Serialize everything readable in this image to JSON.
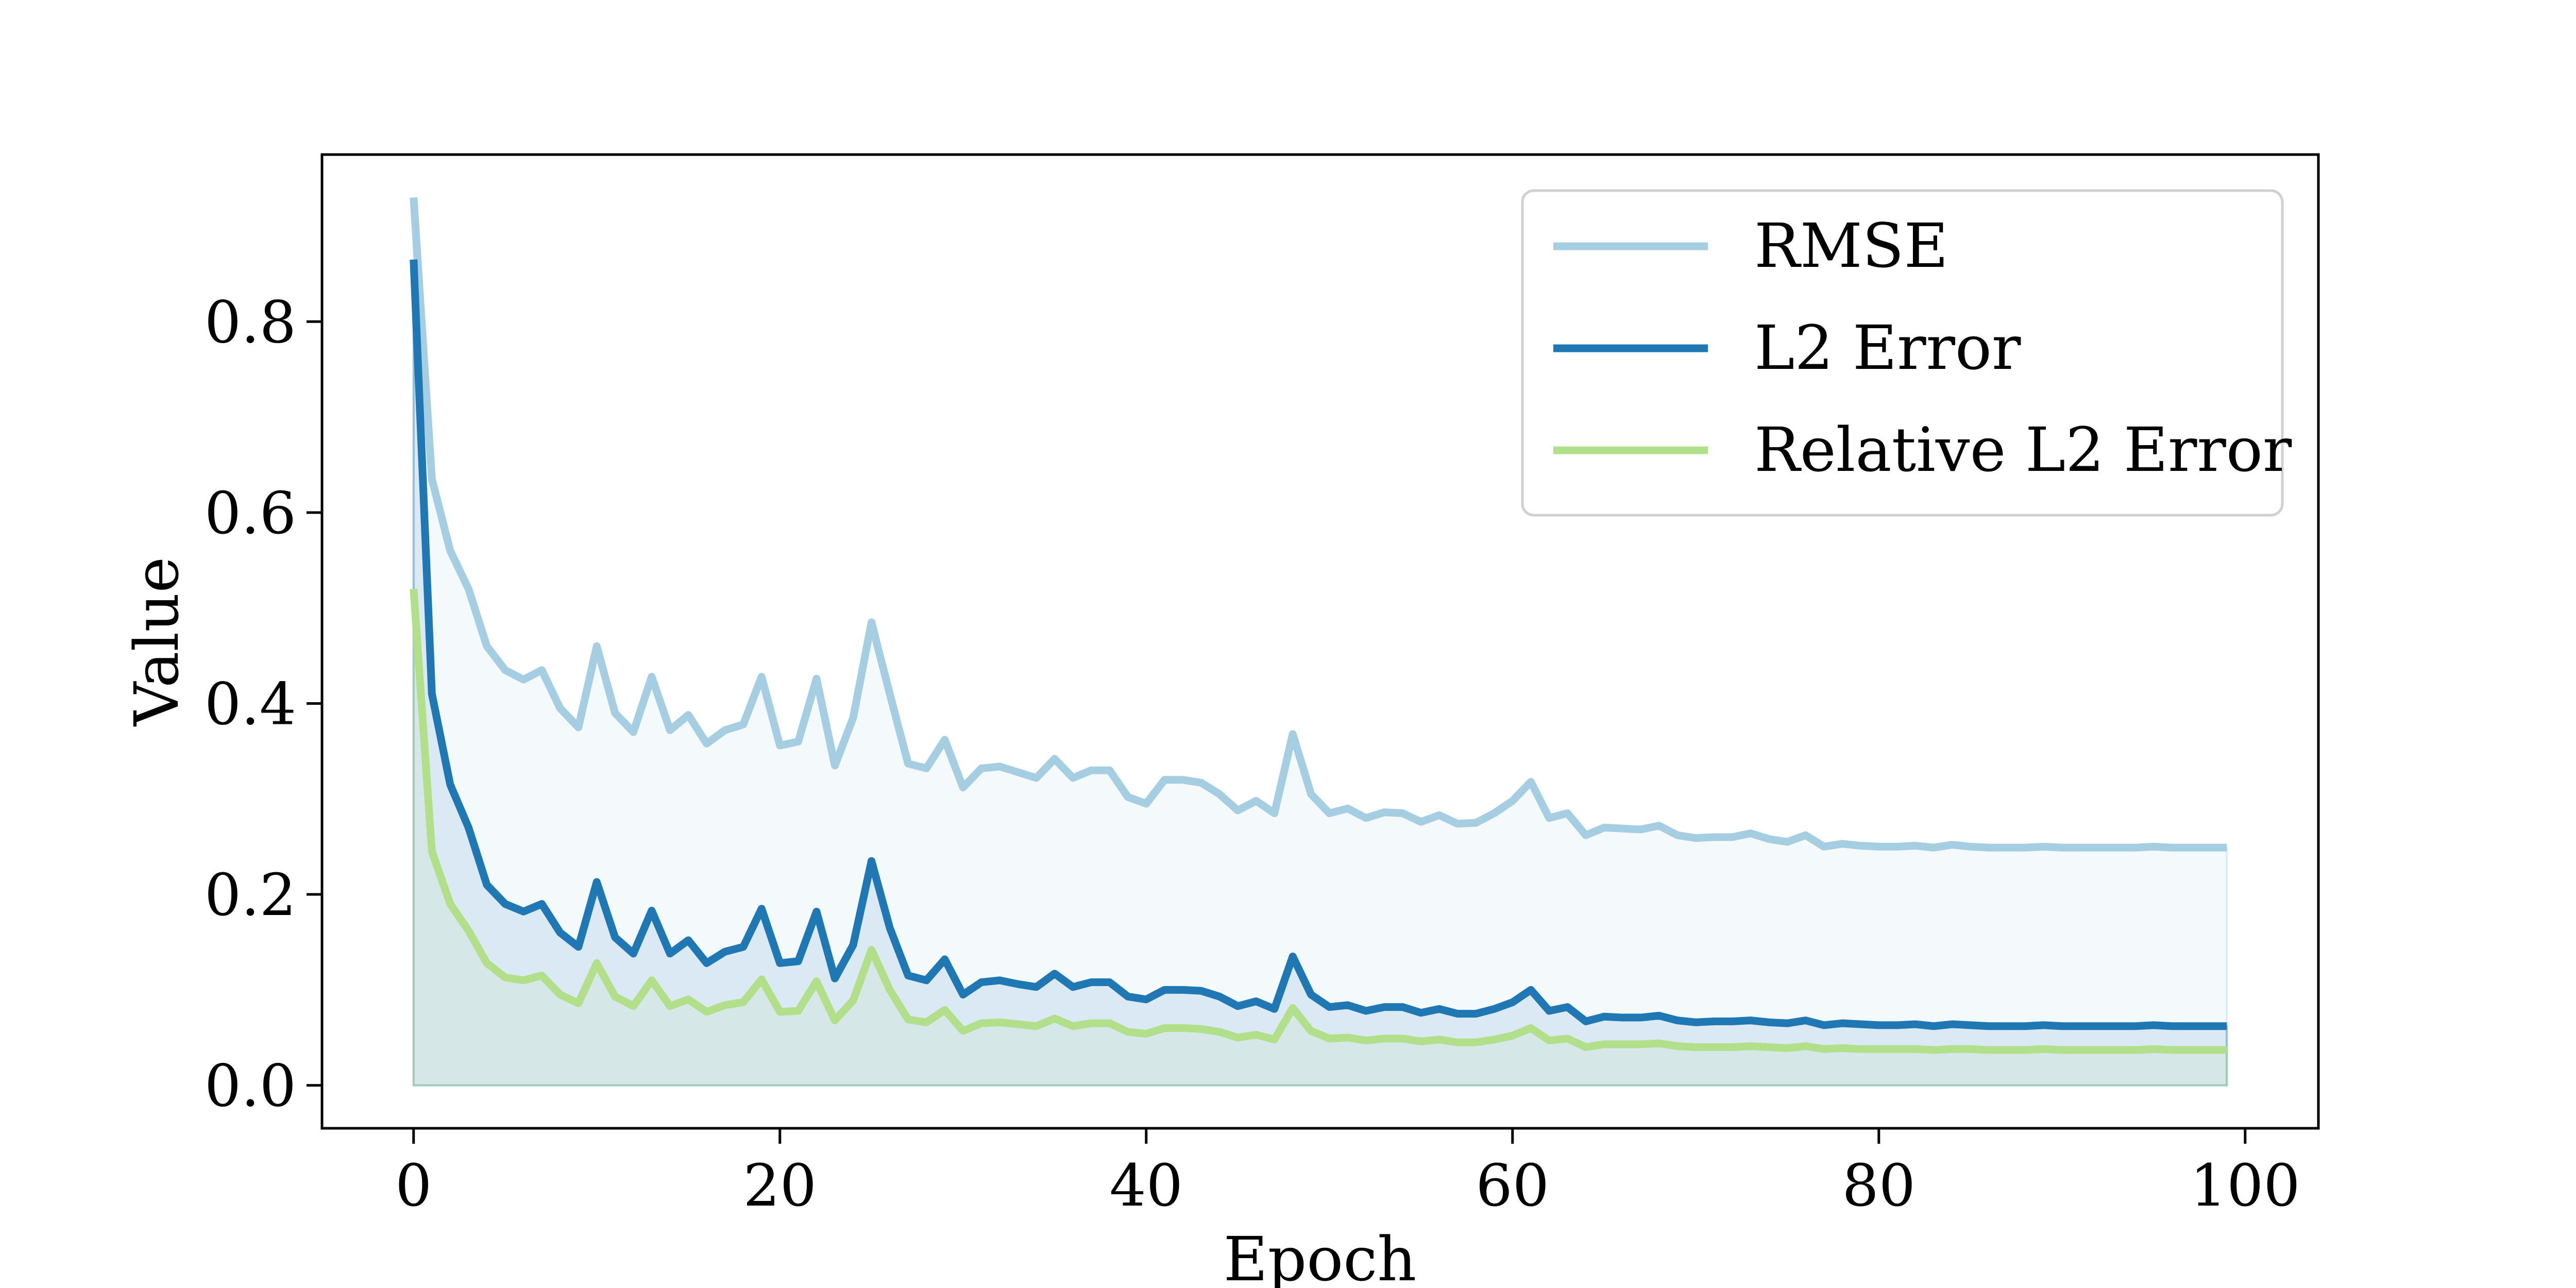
{
  "chart_data": {
    "type": "line",
    "xlabel": "Epoch",
    "ylabel": "Value",
    "xlim": [
      -5,
      104
    ],
    "ylim": [
      -0.045,
      0.975
    ],
    "xticks": [
      0,
      20,
      40,
      60,
      80,
      100
    ],
    "xtick_labels": [
      "0",
      "20",
      "40",
      "60",
      "80",
      "100"
    ],
    "yticks": [
      0.0,
      0.2,
      0.4,
      0.6,
      0.8
    ],
    "ytick_labels": [
      "0.0",
      "0.2",
      "0.4",
      "0.6",
      "0.8"
    ],
    "grid": false,
    "legend_position": "top-right",
    "x": [
      0,
      1,
      2,
      3,
      4,
      5,
      6,
      7,
      8,
      9,
      10,
      11,
      12,
      13,
      14,
      15,
      16,
      17,
      18,
      19,
      20,
      21,
      22,
      23,
      24,
      25,
      26,
      27,
      28,
      29,
      30,
      31,
      32,
      33,
      34,
      35,
      36,
      37,
      38,
      39,
      40,
      41,
      42,
      43,
      44,
      45,
      46,
      47,
      48,
      49,
      50,
      51,
      52,
      53,
      54,
      55,
      56,
      57,
      58,
      59,
      60,
      61,
      62,
      63,
      64,
      65,
      66,
      67,
      68,
      69,
      70,
      71,
      72,
      73,
      74,
      75,
      76,
      77,
      78,
      79,
      80,
      81,
      82,
      83,
      84,
      85,
      86,
      87,
      88,
      89,
      90,
      91,
      92,
      93,
      94,
      95,
      96,
      97,
      98,
      99
    ],
    "series": [
      {
        "name": "RMSE",
        "color": "#a6cee3",
        "fill": true,
        "values": [
          0.93,
          0.635,
          0.56,
          0.52,
          0.46,
          0.435,
          0.425,
          0.435,
          0.395,
          0.375,
          0.46,
          0.39,
          0.37,
          0.428,
          0.372,
          0.388,
          0.358,
          0.372,
          0.378,
          0.428,
          0.356,
          0.36,
          0.426,
          0.335,
          0.385,
          0.485,
          0.41,
          0.337,
          0.332,
          0.362,
          0.312,
          0.332,
          0.334,
          0.328,
          0.322,
          0.342,
          0.322,
          0.33,
          0.33,
          0.302,
          0.295,
          0.32,
          0.32,
          0.317,
          0.305,
          0.288,
          0.298,
          0.285,
          0.368,
          0.305,
          0.285,
          0.29,
          0.28,
          0.286,
          0.285,
          0.276,
          0.283,
          0.274,
          0.275,
          0.285,
          0.298,
          0.318,
          0.28,
          0.285,
          0.262,
          0.27,
          0.269,
          0.268,
          0.272,
          0.262,
          0.259,
          0.26,
          0.26,
          0.264,
          0.258,
          0.255,
          0.262,
          0.25,
          0.253,
          0.251,
          0.25,
          0.25,
          0.251,
          0.249,
          0.252,
          0.25,
          0.249,
          0.249,
          0.249,
          0.25,
          0.249,
          0.249,
          0.249,
          0.249,
          0.249,
          0.25,
          0.249,
          0.249,
          0.249,
          0.249
        ]
      },
      {
        "name": "L2 Error",
        "color": "#1f78b4",
        "fill": true,
        "values": [
          0.865,
          0.41,
          0.315,
          0.27,
          0.21,
          0.19,
          0.182,
          0.19,
          0.16,
          0.145,
          0.213,
          0.155,
          0.138,
          0.183,
          0.138,
          0.152,
          0.128,
          0.14,
          0.145,
          0.185,
          0.128,
          0.13,
          0.182,
          0.112,
          0.147,
          0.235,
          0.165,
          0.115,
          0.11,
          0.132,
          0.095,
          0.108,
          0.11,
          0.106,
          0.103,
          0.117,
          0.103,
          0.108,
          0.108,
          0.093,
          0.09,
          0.1,
          0.1,
          0.099,
          0.093,
          0.083,
          0.088,
          0.08,
          0.135,
          0.095,
          0.082,
          0.084,
          0.078,
          0.082,
          0.082,
          0.076,
          0.08,
          0.075,
          0.075,
          0.08,
          0.087,
          0.1,
          0.078,
          0.082,
          0.067,
          0.072,
          0.071,
          0.071,
          0.073,
          0.068,
          0.066,
          0.067,
          0.067,
          0.068,
          0.066,
          0.065,
          0.068,
          0.063,
          0.065,
          0.064,
          0.063,
          0.063,
          0.064,
          0.062,
          0.064,
          0.063,
          0.062,
          0.062,
          0.062,
          0.063,
          0.062,
          0.062,
          0.062,
          0.062,
          0.062,
          0.063,
          0.062,
          0.062,
          0.062,
          0.062
        ]
      },
      {
        "name": "Relative L2 Error",
        "color": "#b2df8a",
        "fill": true,
        "values": [
          0.52,
          0.245,
          0.19,
          0.162,
          0.128,
          0.113,
          0.11,
          0.115,
          0.095,
          0.086,
          0.128,
          0.093,
          0.083,
          0.11,
          0.083,
          0.09,
          0.077,
          0.084,
          0.087,
          0.111,
          0.077,
          0.078,
          0.109,
          0.068,
          0.089,
          0.142,
          0.1,
          0.069,
          0.066,
          0.079,
          0.057,
          0.065,
          0.066,
          0.064,
          0.062,
          0.07,
          0.062,
          0.065,
          0.065,
          0.056,
          0.054,
          0.06,
          0.06,
          0.059,
          0.056,
          0.05,
          0.053,
          0.048,
          0.081,
          0.057,
          0.049,
          0.05,
          0.047,
          0.049,
          0.049,
          0.046,
          0.048,
          0.045,
          0.045,
          0.048,
          0.052,
          0.06,
          0.047,
          0.049,
          0.04,
          0.043,
          0.043,
          0.043,
          0.044,
          0.041,
          0.04,
          0.04,
          0.04,
          0.041,
          0.04,
          0.039,
          0.041,
          0.038,
          0.039,
          0.038,
          0.038,
          0.038,
          0.038,
          0.037,
          0.038,
          0.038,
          0.037,
          0.037,
          0.037,
          0.038,
          0.037,
          0.037,
          0.037,
          0.037,
          0.037,
          0.038,
          0.037,
          0.037,
          0.037,
          0.037
        ]
      }
    ]
  }
}
